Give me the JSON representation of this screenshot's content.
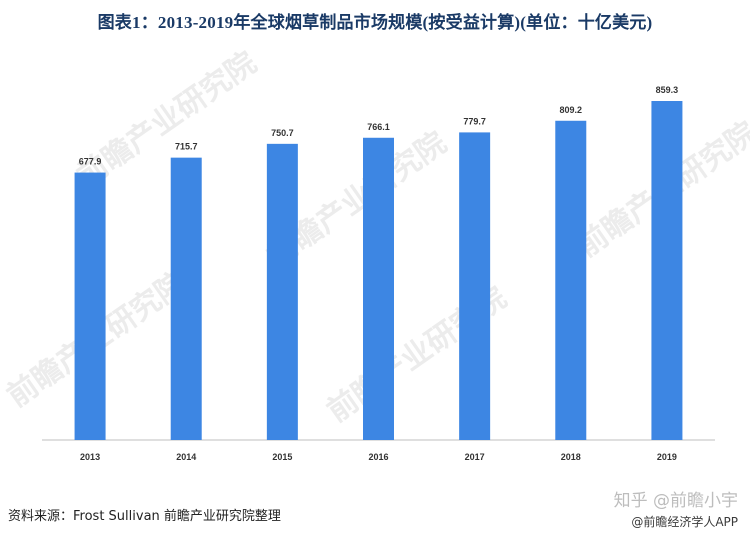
{
  "title": "图表1：2013-2019年全球烟草制品市场规模(按受益计算)(单位：十亿美元)",
  "source_text": "资料来源：Frost Sullivan 前瞻产业研究院整理",
  "watermark": {
    "line1": "知乎 @前瞻小宇",
    "line2": "@前瞻经济学人APP"
  },
  "background_watermark": "前瞻产业研究院",
  "colors": {
    "bar": "#3d86e3",
    "title": "#1a3a66"
  },
  "chart_data": {
    "type": "bar",
    "title": "图表1：2013-2019年全球烟草制品市场规模(按受益计算)(单位：十亿美元)",
    "categories": [
      "2013",
      "2014",
      "2015",
      "2016",
      "2017",
      "2018",
      "2019"
    ],
    "values": [
      677.9,
      715.7,
      750.7,
      766.1,
      779.7,
      809.2,
      859.3
    ],
    "value_labels": [
      "677.9",
      "715.7",
      "750.7",
      "766.1",
      "779.7",
      "809.2",
      "859.3"
    ],
    "ylim": [
      0,
      859.3
    ],
    "grid": false,
    "legend": "none"
  }
}
